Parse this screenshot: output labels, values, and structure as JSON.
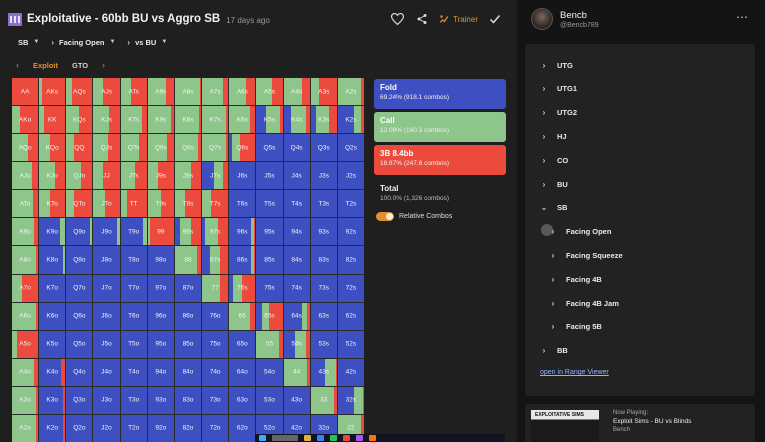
{
  "header": {
    "title": "Exploitative - 60bb BU vs Aggro SB",
    "age": "17 days ago",
    "trainer_label": "Trainer",
    "icons": {
      "library": "library-icon",
      "favorite": "heart-icon",
      "share": "share-icon",
      "trainer": "trainer-icon",
      "confirm": "check-icon"
    }
  },
  "filters": [
    {
      "label": "SB",
      "chevron": false
    },
    {
      "label": "Facing Open",
      "chevron": true
    },
    {
      "label": "vs BU",
      "chevron": true
    }
  ],
  "tabs": {
    "exploit": "Exploit",
    "gto": "GTO"
  },
  "colors": {
    "fold": "#3e4fc1",
    "call": "#8dc58a",
    "raise": "#ec4a3c",
    "accent": "#e0902e"
  },
  "ranks": [
    "A",
    "K",
    "Q",
    "J",
    "T",
    "9",
    "8",
    "7",
    "6",
    "5",
    "4",
    "3",
    "2"
  ],
  "grid": [
    [
      [
        0,
        0,
        1
      ],
      [
        0,
        0.1,
        0.9
      ],
      [
        0,
        0.2,
        0.8
      ],
      [
        0,
        0.35,
        0.65
      ],
      [
        0,
        0.4,
        0.6
      ],
      [
        0,
        0.7,
        0.3
      ],
      [
        0,
        0.95,
        0.05
      ],
      [
        0,
        0.8,
        0.2
      ],
      [
        0,
        0.65,
        0.35
      ],
      [
        0,
        0.6,
        0.4
      ],
      [
        0,
        0.7,
        0.3
      ],
      [
        0,
        0.3,
        0.7
      ],
      [
        0,
        0.9,
        0.1
      ]
    ],
    [
      [
        0,
        0.3,
        0.7
      ],
      [
        0,
        0.2,
        0.8
      ],
      [
        0,
        0.5,
        0.5
      ],
      [
        0,
        0.6,
        0.4
      ],
      [
        0,
        0.8,
        0.2
      ],
      [
        0,
        0.9,
        0.1
      ],
      [
        0,
        0.92,
        0.08
      ],
      [
        0,
        0.9,
        0.1
      ],
      [
        0,
        0.8,
        0.2
      ],
      [
        0.35,
        0.55,
        0.1
      ],
      [
        0.3,
        0.55,
        0.15
      ],
      [
        0.2,
        0.5,
        0.3
      ],
      [
        0.6,
        0.3,
        0.1
      ]
    ],
    [
      [
        0,
        0.6,
        0.4
      ],
      [
        0,
        0.4,
        0.6
      ],
      [
        0,
        0.3,
        0.7
      ],
      [
        0,
        0.55,
        0.45
      ],
      [
        0,
        0.7,
        0.3
      ],
      [
        0,
        0.75,
        0.25
      ],
      [
        0,
        0.9,
        0.1
      ],
      [
        0,
        0.92,
        0.08
      ],
      [
        0.1,
        0.3,
        0.6
      ],
      [
        1,
        0,
        0
      ],
      [
        1,
        0,
        0
      ],
      [
        1,
        0,
        0
      ],
      [
        1,
        0,
        0
      ]
    ],
    [
      [
        0,
        0.75,
        0.25
      ],
      [
        0,
        0.6,
        0.4
      ],
      [
        0,
        0.55,
        0.45
      ],
      [
        0,
        0.35,
        0.65
      ],
      [
        0,
        0.55,
        0.45
      ],
      [
        0,
        0.4,
        0.6
      ],
      [
        0,
        0.6,
        0.4
      ],
      [
        0.45,
        0.35,
        0.2
      ],
      [
        1,
        0,
        0
      ],
      [
        1,
        0,
        0
      ],
      [
        1,
        0,
        0
      ],
      [
        1,
        0,
        0
      ],
      [
        1,
        0,
        0
      ]
    ],
    [
      [
        0,
        0.8,
        0.2
      ],
      [
        0,
        0.4,
        0.6
      ],
      [
        0,
        0.3,
        0.7
      ],
      [
        0,
        0.45,
        0.55
      ],
      [
        0,
        0.25,
        0.75
      ],
      [
        0,
        0.5,
        0.5
      ],
      [
        0,
        0.4,
        0.6
      ],
      [
        0,
        0.35,
        0.65
      ],
      [
        1,
        0,
        0
      ],
      [
        1,
        0,
        0
      ],
      [
        1,
        0,
        0
      ],
      [
        1,
        0,
        0
      ],
      [
        1,
        0,
        0
      ]
    ],
    [
      [
        0,
        0.85,
        0.15
      ],
      [
        0.8,
        0.2,
        0
      ],
      [
        0.9,
        0.1,
        0
      ],
      [
        0.9,
        0.1,
        0
      ],
      [
        0.85,
        0.15,
        0
      ],
      [
        0,
        0.1,
        0.9
      ],
      [
        0.2,
        0.4,
        0.4
      ],
      [
        0.1,
        0.5,
        0.4
      ],
      [
        0.85,
        0.1,
        0.05
      ],
      [
        1,
        0,
        0
      ],
      [
        1,
        0,
        0
      ],
      [
        1,
        0,
        0
      ],
      [
        1,
        0,
        0
      ]
    ],
    [
      [
        0,
        0.9,
        0.1
      ],
      [
        0.9,
        0.1,
        0
      ],
      [
        1,
        0,
        0
      ],
      [
        1,
        0,
        0
      ],
      [
        1,
        0,
        0
      ],
      [
        1,
        0,
        0
      ],
      [
        0,
        0.85,
        0.15
      ],
      [
        0.3,
        0.4,
        0.3
      ],
      [
        0.85,
        0.1,
        0.05
      ],
      [
        1,
        0,
        0
      ],
      [
        1,
        0,
        0
      ],
      [
        1,
        0,
        0
      ],
      [
        1,
        0,
        0
      ]
    ],
    [
      [
        0,
        0.4,
        0.6
      ],
      [
        1,
        0,
        0
      ],
      [
        1,
        0,
        0
      ],
      [
        1,
        0,
        0
      ],
      [
        1,
        0,
        0
      ],
      [
        1,
        0,
        0
      ],
      [
        1,
        0,
        0
      ],
      [
        0,
        0.7,
        0.3
      ],
      [
        0.15,
        0.35,
        0.5
      ],
      [
        1,
        0,
        0
      ],
      [
        1,
        0,
        0
      ],
      [
        1,
        0,
        0
      ],
      [
        1,
        0,
        0
      ]
    ],
    [
      [
        0,
        0.9,
        0.1
      ],
      [
        1,
        0,
        0
      ],
      [
        1,
        0,
        0
      ],
      [
        1,
        0,
        0
      ],
      [
        1,
        0,
        0
      ],
      [
        1,
        0,
        0
      ],
      [
        1,
        0,
        0
      ],
      [
        1,
        0,
        0
      ],
      [
        0,
        0.8,
        0.2
      ],
      [
        0.2,
        0.3,
        0.5
      ],
      [
        0.7,
        0.2,
        0.1
      ],
      [
        1,
        0,
        0
      ],
      [
        1,
        0,
        0
      ]
    ],
    [
      [
        0,
        0.2,
        0.8
      ],
      [
        1,
        0,
        0
      ],
      [
        1,
        0,
        0
      ],
      [
        1,
        0,
        0
      ],
      [
        1,
        0,
        0
      ],
      [
        1,
        0,
        0
      ],
      [
        1,
        0,
        0
      ],
      [
        1,
        0,
        0
      ],
      [
        1,
        0,
        0
      ],
      [
        0,
        0.85,
        0.15
      ],
      [
        0.45,
        0.4,
        0.15
      ],
      [
        1,
        0,
        0
      ],
      [
        1,
        0,
        0
      ]
    ],
    [
      [
        0,
        0.85,
        0.15
      ],
      [
        0.85,
        0,
        0.15
      ],
      [
        1,
        0,
        0
      ],
      [
        1,
        0,
        0
      ],
      [
        1,
        0,
        0
      ],
      [
        1,
        0,
        0
      ],
      [
        1,
        0,
        0
      ],
      [
        1,
        0,
        0
      ],
      [
        1,
        0,
        0
      ],
      [
        1,
        0,
        0
      ],
      [
        0,
        0.9,
        0.1
      ],
      [
        0.55,
        0.4,
        0.05
      ],
      [
        1,
        0,
        0
      ]
    ],
    [
      [
        0,
        0.9,
        0.1
      ],
      [
        0.9,
        0,
        0.1
      ],
      [
        1,
        0,
        0
      ],
      [
        1,
        0,
        0
      ],
      [
        1,
        0,
        0
      ],
      [
        1,
        0,
        0
      ],
      [
        1,
        0,
        0
      ],
      [
        1,
        0,
        0
      ],
      [
        1,
        0,
        0
      ],
      [
        1,
        0,
        0
      ],
      [
        1,
        0,
        0
      ],
      [
        0,
        0.9,
        0.1
      ],
      [
        0.6,
        0.35,
        0.05
      ]
    ],
    [
      [
        0,
        0.9,
        0.1
      ],
      [
        0.9,
        0,
        0.1
      ],
      [
        1,
        0,
        0
      ],
      [
        1,
        0,
        0
      ],
      [
        1,
        0,
        0
      ],
      [
        1,
        0,
        0
      ],
      [
        1,
        0,
        0
      ],
      [
        1,
        0,
        0
      ],
      [
        1,
        0,
        0
      ],
      [
        1,
        0,
        0
      ],
      [
        1,
        0,
        0
      ],
      [
        1,
        0,
        0
      ],
      [
        0,
        0.9,
        0.1
      ]
    ]
  ],
  "actions": [
    {
      "key": "fold",
      "name": "Fold",
      "sub": "69.24% (918.1 combos)",
      "color": "#3e4fc1"
    },
    {
      "key": "call",
      "name": "Call",
      "sub": "12.09% (160.3 combos)",
      "color": "#8dc58a"
    },
    {
      "key": "raise",
      "name": "3B 8.4bb",
      "sub": "18.67% (247.6 combos)",
      "color": "#ec4a3c"
    }
  ],
  "total": {
    "label": "Total",
    "sub": "100.0% (1,326 combos)"
  },
  "relative_combos": {
    "label": "Relative Combos",
    "enabled": true
  },
  "user": {
    "name": "Bencb",
    "handle": "@Bencb789"
  },
  "tree": [
    {
      "label": "UTG",
      "chevron": "›",
      "level": 0
    },
    {
      "label": "UTG1",
      "chevron": "›",
      "level": 0
    },
    {
      "label": "UTG2",
      "chevron": "›",
      "level": 0
    },
    {
      "label": "HJ",
      "chevron": "›",
      "level": 0
    },
    {
      "label": "CO",
      "chevron": "›",
      "level": 0
    },
    {
      "label": "BU",
      "chevron": "›",
      "level": 0
    },
    {
      "label": "SB",
      "chevron": "⌄",
      "level": 0
    },
    {
      "label": "Facing Open",
      "chevron": "›",
      "level": 1
    },
    {
      "label": "Facing Squeeze",
      "chevron": "›",
      "level": 1
    },
    {
      "label": "Facing 4B",
      "chevron": "›",
      "level": 1
    },
    {
      "label": "Facing 4B Jam",
      "chevron": "›",
      "level": 1
    },
    {
      "label": "Facing 5B",
      "chevron": "›",
      "level": 1
    },
    {
      "label": "BB",
      "chevron": "›",
      "level": 0
    }
  ],
  "range_viewer_link": "open in Range Viewer",
  "now_playing": {
    "label": "Now Playing:",
    "title": "Exploit Sims - BU vs Blinds",
    "artist": "Bench",
    "thumb_text": "EXPLOITATIVE SIMS"
  }
}
